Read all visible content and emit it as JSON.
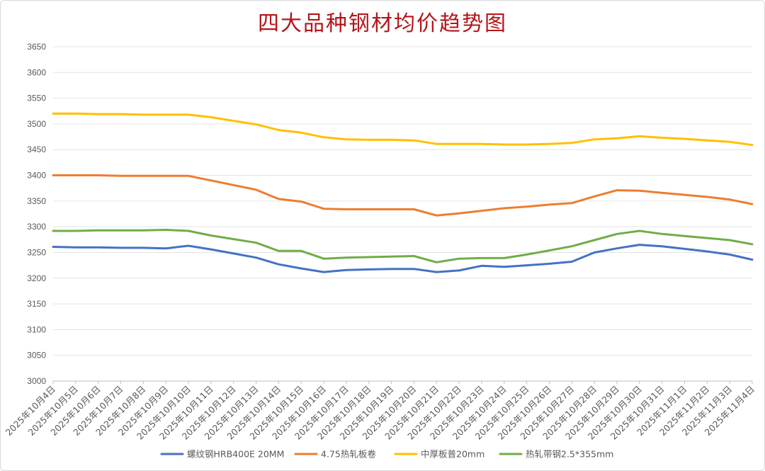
{
  "chart_data": {
    "type": "line",
    "title": "四大品种钢材均价趋势图",
    "xlabel": "",
    "ylabel": "",
    "ylim": [
      3000,
      3650
    ],
    "yticks": [
      3000,
      3050,
      3100,
      3150,
      3200,
      3250,
      3300,
      3350,
      3400,
      3450,
      3500,
      3550,
      3600,
      3650
    ],
    "grid": true,
    "legend_position": "bottom",
    "categories": [
      "2025年10月4日",
      "2025年10月5日",
      "2025年10月6日",
      "2025年10月7日",
      "2025年10月8日",
      "2025年10月9日",
      "2025年10月10日",
      "2025年10月11日",
      "2025年10月12日",
      "2025年10月13日",
      "2025年10月14日",
      "2025年10月15日",
      "2025年10月16日",
      "2025年10月17日",
      "2025年10月18日",
      "2025年10月19日",
      "2025年10月20日",
      "2025年10月21日",
      "2025年10月22日",
      "2025年10月23日",
      "2025年10月24日",
      "2025年10月25日",
      "2025年10月26日",
      "2025年10月27日",
      "2025年10月28日",
      "2025年10月29日",
      "2025年10月30日",
      "2025年10月31日",
      "2025年11月1日",
      "2025年11月2日",
      "2025年11月3日",
      "2025年11月4日"
    ],
    "series": [
      {
        "name": "螺纹钢HRB400E 20MM",
        "color": "#4472c4",
        "values": [
          3261,
          3260,
          3260,
          3259,
          3259,
          3258,
          3263,
          3256,
          3248,
          3240,
          3227,
          3219,
          3212,
          3216,
          3217,
          3218,
          3218,
          3212,
          3215,
          3224,
          3222,
          3225,
          3228,
          3232,
          3250,
          3258,
          3265,
          3262,
          3257,
          3252,
          3246,
          3236
        ]
      },
      {
        "name": "4.75热轧板卷",
        "color": "#ed7d31",
        "values": [
          3400,
          3400,
          3400,
          3399,
          3399,
          3399,
          3399,
          3390,
          3381,
          3372,
          3354,
          3349,
          3335,
          3334,
          3334,
          3334,
          3334,
          3322,
          3326,
          3331,
          3336,
          3339,
          3343,
          3346,
          3359,
          3371,
          3370,
          3366,
          3362,
          3358,
          3353,
          3344
        ]
      },
      {
        "name": "中厚板普20mm",
        "color": "#ffc000",
        "values": [
          3520,
          3520,
          3519,
          3519,
          3518,
          3518,
          3518,
          3513,
          3506,
          3499,
          3488,
          3483,
          3474,
          3470,
          3469,
          3469,
          3468,
          3461,
          3461,
          3461,
          3460,
          3460,
          3461,
          3463,
          3470,
          3472,
          3476,
          3473,
          3471,
          3468,
          3465,
          3459
        ]
      },
      {
        "name": "热轧带钢2.5*355mm",
        "color": "#70ad47",
        "values": [
          3292,
          3292,
          3293,
          3293,
          3293,
          3294,
          3292,
          3283,
          3276,
          3269,
          3253,
          3253,
          3238,
          3240,
          3241,
          3242,
          3243,
          3231,
          3238,
          3239,
          3239,
          3246,
          3254,
          3262,
          3274,
          3286,
          3292,
          3286,
          3282,
          3278,
          3274,
          3266
        ]
      }
    ]
  }
}
